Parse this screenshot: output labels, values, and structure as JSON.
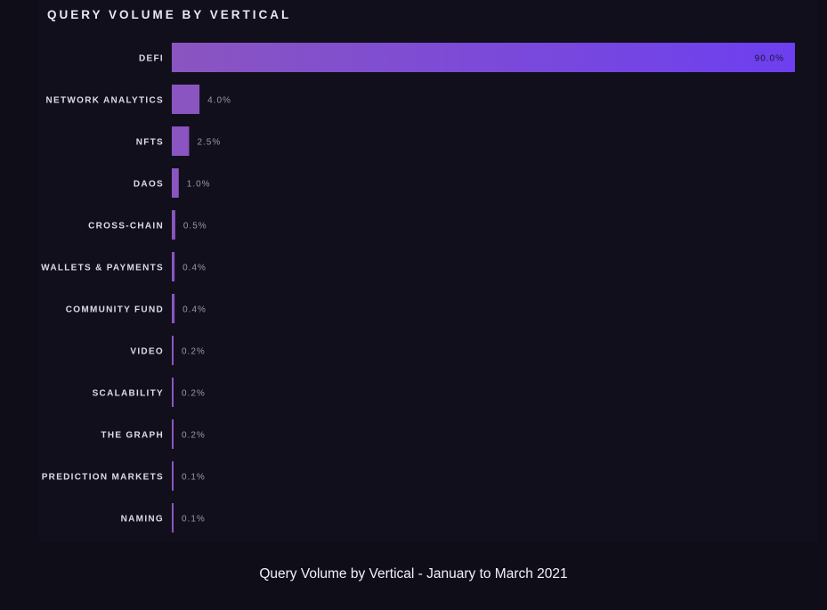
{
  "chart_data": {
    "type": "bar",
    "orientation": "horizontal",
    "title": "QUERY VOLUME BY VERTICAL",
    "categories": [
      "DEFI",
      "NETWORK ANALYTICS",
      "NFTS",
      "DAOS",
      "CROSS-CHAIN",
      "WALLETS & PAYMENTS",
      "COMMUNITY FUND",
      "VIDEO",
      "SCALABILITY",
      "THE GRAPH",
      "PREDICTION MARKETS",
      "NAMING"
    ],
    "values": [
      90.0,
      4.0,
      2.5,
      1.0,
      0.5,
      0.4,
      0.4,
      0.2,
      0.2,
      0.2,
      0.1,
      0.1
    ],
    "value_labels": [
      "90.0%",
      "4.0%",
      "2.5%",
      "1.0%",
      "0.5%",
      "0.4%",
      "0.4%",
      "0.2%",
      "0.2%",
      "0.2%",
      "0.1%",
      "0.1%"
    ],
    "xlim": [
      0,
      90
    ],
    "unit": "%",
    "grid": false,
    "legend": "none",
    "colors": {
      "bar_start": "#8a55c0",
      "bar_end": "#6d3ff0",
      "background": "#0f0d18"
    }
  },
  "caption": "Query Volume by Vertical - January to March 2021"
}
